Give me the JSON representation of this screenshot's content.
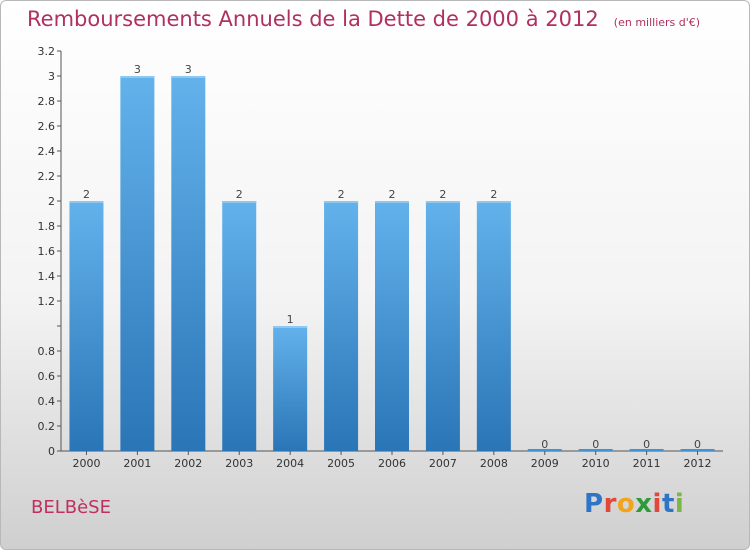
{
  "title": "Remboursements Annuels de la Dette de 2000 à 2012",
  "unit_note": "(en milliers d'€)",
  "city": "BELBèSE",
  "logo": "Proxiti",
  "colors": {
    "bar": "#3f93d6",
    "bar_light": "#63b2ec",
    "bar_dark": "#2a75b6",
    "title": "#b03060"
  },
  "chart_data": {
    "type": "bar",
    "title": "Remboursements Annuels de la Dette de 2000 à 2012",
    "categories": [
      "2000",
      "2001",
      "2002",
      "2003",
      "2004",
      "2005",
      "2006",
      "2007",
      "2008",
      "2009",
      "2010",
      "2011",
      "2012"
    ],
    "values": [
      2,
      3,
      3,
      2,
      1,
      2,
      2,
      2,
      2,
      0,
      0,
      0,
      0
    ],
    "value_labels": [
      "2",
      "3",
      "3",
      "2",
      "1",
      "2",
      "2",
      "2",
      "2",
      "0",
      "0",
      "0",
      "0"
    ],
    "ylim": [
      0,
      3.2
    ],
    "yticks": [
      0,
      0.2,
      0.4,
      0.6,
      0.8,
      1,
      1.2,
      1.4,
      1.6,
      1.8,
      2,
      2.2,
      2.4,
      2.6,
      2.8,
      3,
      3.2
    ],
    "ytick_labels": [
      "0",
      "0.2",
      "0.4",
      "0.6",
      "0.8",
      "",
      "1.2",
      "1.4",
      "1.6",
      "1.8",
      "2",
      "2.2",
      "2.4",
      "2.6",
      "2.8",
      "3",
      "3.2"
    ],
    "grid": false,
    "legend": "none"
  }
}
